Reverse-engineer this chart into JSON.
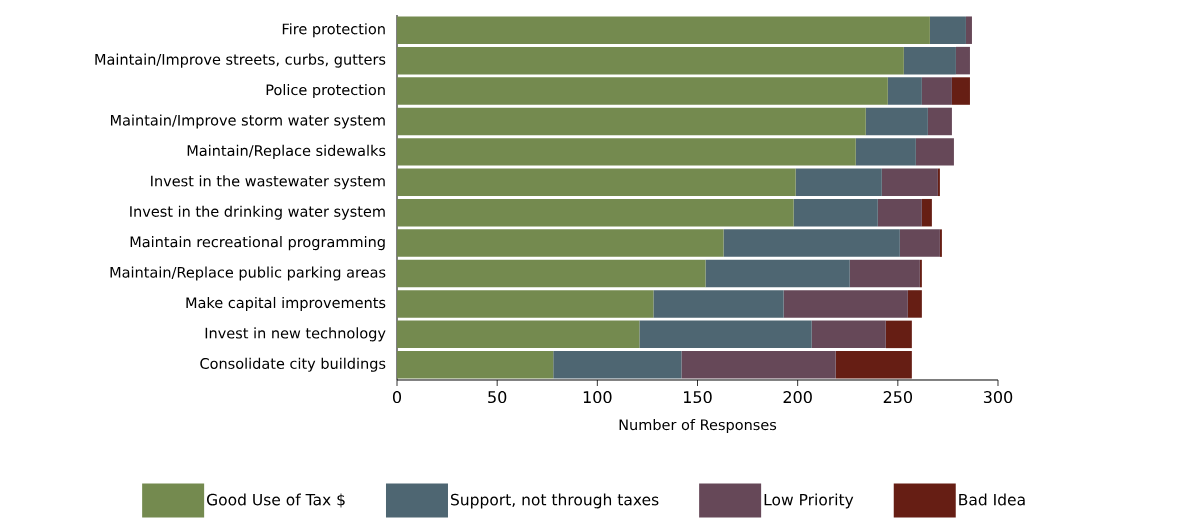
{
  "chart_data": {
    "type": "bar",
    "orientation": "horizontal",
    "stacked": true,
    "xlabel": "Number of Responses",
    "categories": [
      "Fire protection",
      "Maintain/Improve streets, curbs, gutters",
      "Police protection",
      "Maintain/Improve storm water system",
      "Maintain/Replace sidewalks",
      "Invest in the wastewater system",
      "Invest in the drinking water system",
      "Maintain recreational programming",
      "Maintain/Replace public parking areas",
      "Make capital improvements",
      "Invest in new technology",
      "Consolidate city buildings"
    ],
    "series": [
      {
        "name": "Good Use of Tax $",
        "color": "#748a4f",
        "values": [
          266,
          253,
          245,
          234,
          229,
          199,
          198,
          163,
          154,
          128,
          121,
          78
        ]
      },
      {
        "name": "Support, not through taxes",
        "color": "#4e6672",
        "values": [
          18,
          26,
          17,
          31,
          30,
          43,
          42,
          88,
          72,
          65,
          86,
          64
        ]
      },
      {
        "name": "Low Priority",
        "color": "#664858",
        "values": [
          3,
          7,
          15,
          12,
          19,
          28,
          22,
          20,
          35,
          62,
          37,
          77
        ]
      },
      {
        "name": "Bad Idea",
        "color": "#661e14",
        "values": [
          0,
          0,
          9,
          0,
          0,
          1,
          5,
          1,
          1,
          7,
          13,
          38
        ]
      }
    ],
    "xlim": [
      0,
      300
    ],
    "xticks": [
      0,
      50,
      100,
      150,
      200,
      250,
      300
    ],
    "grid": false,
    "legend": "bottom"
  }
}
